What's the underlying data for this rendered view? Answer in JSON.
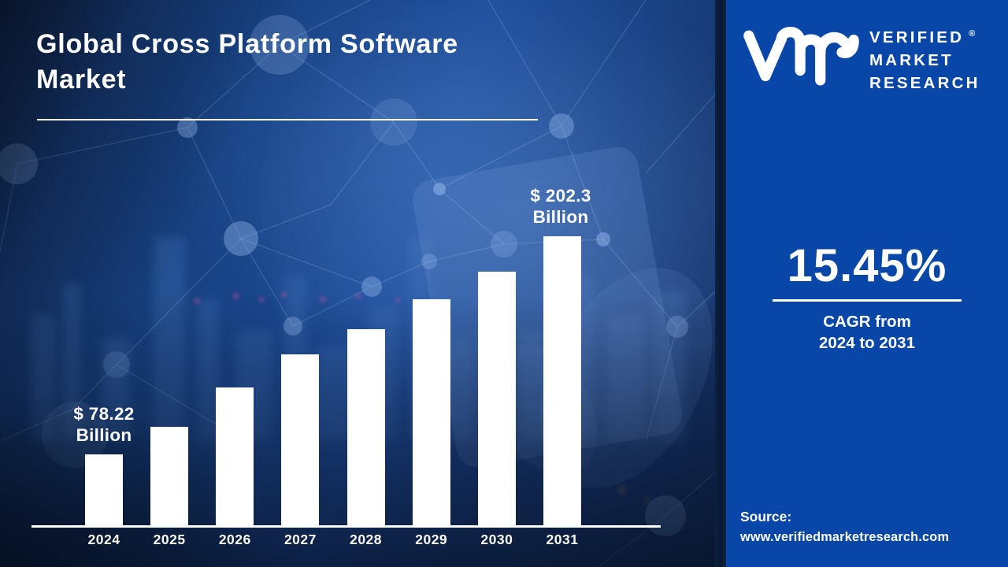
{
  "title": "Global Cross Platform Software Market",
  "chart_data": {
    "type": "bar",
    "title": "Global Cross Platform Software Market",
    "unit": "USD Billion",
    "categories": [
      "2024",
      "2025",
      "2026",
      "2027",
      "2028",
      "2029",
      "2030",
      "2031"
    ],
    "values": [
      78.22,
      93.9,
      116.3,
      135.1,
      149.4,
      166.5,
      182.1,
      202.3
    ],
    "values_note": "Only 2024 and 2031 carry data labels in the image; intermediate values estimated from bar heights",
    "bar_height_pct": [
      25.1,
      34.6,
      48.1,
      59.5,
      68.1,
      78.4,
      87.8,
      100
    ],
    "bar_color": "#ffffff",
    "axis_color": "#ffffff",
    "first_bar_label": "$ 78.22\nBillion",
    "last_bar_label": "$ 202.3\nBillion",
    "grid": false,
    "legend": false,
    "y_axis_visible": false
  },
  "panel": {
    "brand": {
      "monogram_icon": "vmr-monogram",
      "lines": [
        "VERIFIED",
        "MARKET",
        "RESEARCH"
      ],
      "registered": "®"
    },
    "cagr_value": "15.45%",
    "cagr_caption": "CAGR from\n2024 to 2031",
    "source_label": "Source:",
    "source_url": "www.verifiedmarketresearch.com",
    "background": "#0847a8"
  },
  "colors": {
    "chart_bg_dark": "#122c58",
    "chart_bg_mid": "#1d4d9b",
    "panel_blue": "#0847a8",
    "divider_navy": "#081730",
    "bar_white": "#ffffff",
    "text_white": "#ffffff"
  }
}
